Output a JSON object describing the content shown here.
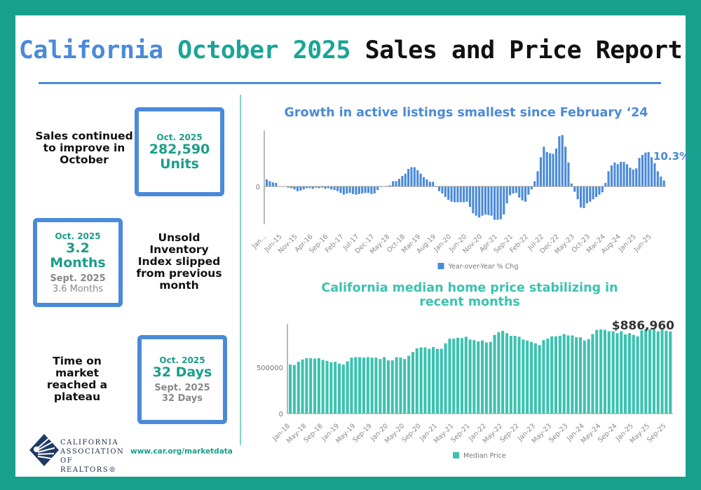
{
  "header": {
    "title_part1": "California",
    "title_part2": "October 2025",
    "title_part3": "Sales and Price Report"
  },
  "colors": {
    "frame": "#17a08e",
    "blue": "#4a8ad8",
    "teal": "#1a9e8a",
    "price_bar": "#3cc2b0"
  },
  "highlights": [
    {
      "description": "Sales continued to improve in October",
      "label": "Oct. 2025",
      "value": "282,590",
      "unit": "Units"
    },
    {
      "description": "Unsold Inventory Index slipped from previous month",
      "label": "Oct. 2025",
      "value": "3.2 Months",
      "prev_label": "Sept. 2025",
      "prev_value": "3.6 Months"
    },
    {
      "description": "Time on market reached a plateau",
      "label": "Oct. 2025",
      "value": "32 Days",
      "prev_label": "Sept. 2025",
      "prev_value": "32 Days"
    }
  ],
  "footer": {
    "logo_text": "CALIFORNIA ASSOCIATION OF REALTORS®",
    "url": "www.car.org/marketdata"
  },
  "chart_data": [
    {
      "type": "bar",
      "title": "Growth in active listings smallest since February ‘24",
      "series": [
        {
          "name": "Year-over-Year % Chg",
          "values": [
            12,
            9,
            7,
            6,
            0,
            0,
            0,
            -2,
            -3,
            -5,
            -8,
            -7,
            -5,
            -3,
            -3,
            -4,
            -2,
            -3,
            -2,
            -4,
            -3,
            -5,
            -6,
            -8,
            -11,
            -14,
            -12,
            -11,
            -13,
            -14,
            -13,
            -12,
            -11,
            -11,
            -13,
            -12,
            -6,
            -1,
            0,
            1,
            2,
            9,
            9,
            13,
            18,
            22,
            30,
            33,
            33,
            28,
            22,
            16,
            12,
            8,
            8,
            -1,
            -8,
            -12,
            -18,
            -23,
            -26,
            -27,
            -27,
            -27,
            -27,
            -26,
            -35,
            -46,
            -50,
            -53,
            -50,
            -48,
            -49,
            -50,
            -57,
            -57,
            -56,
            -48,
            -29,
            -15,
            -12,
            -11,
            -19,
            -24,
            -26,
            -14,
            -5,
            9,
            26,
            50,
            68,
            59,
            57,
            56,
            65,
            86,
            88,
            68,
            41,
            5,
            -9,
            -22,
            -36,
            -37,
            -29,
            -26,
            -22,
            -18,
            -14,
            -10,
            6,
            26,
            36,
            41,
            38,
            42,
            42,
            38,
            32,
            29,
            31,
            49,
            54,
            58,
            59,
            50,
            40,
            26,
            17,
            10.3
          ]
        }
      ],
      "tick_labels": [
        "Jan...",
        "Jun-15",
        "Nov-15",
        "Apr-16",
        "Sep-16",
        "Feb-17",
        "Jul-17",
        "Dec-17",
        "May-18",
        "Oct-18",
        "Mar-19",
        "Aug-19",
        "Jan-20",
        "Jun-20",
        "Nov-20",
        "Apr-21",
        "Sep-21",
        "Feb-22",
        "Jul-22",
        "Dec-22",
        "May-23",
        "Oct-23",
        "Mar-24",
        "Aug-24",
        "Jan-25",
        "Jun-25"
      ],
      "y_tick_labels": [
        "0"
      ],
      "ylim": [
        -60,
        90
      ],
      "annotation": "10.3%",
      "legend": "bottom"
    },
    {
      "type": "bar",
      "title": "California median home price stabilizing in recent months",
      "series": [
        {
          "name": "Median Price",
          "values": [
            530000,
            525000,
            560000,
            585000,
            600000,
            600000,
            595000,
            600000,
            580000,
            570000,
            555000,
            560000,
            540000,
            530000,
            565000,
            605000,
            610000,
            610000,
            605000,
            610000,
            605000,
            605000,
            590000,
            610000,
            575000,
            575000,
            610000,
            605000,
            590000,
            625000,
            665000,
            705000,
            715000,
            715000,
            700000,
            720000,
            700000,
            700000,
            760000,
            810000,
            810000,
            820000,
            815000,
            830000,
            800000,
            795000,
            780000,
            790000,
            770000,
            775000,
            850000,
            880000,
            895000,
            870000,
            840000,
            840000,
            830000,
            800000,
            790000,
            775000,
            760000,
            740000,
            795000,
            810000,
            835000,
            835000,
            840000,
            860000,
            845000,
            845000,
            825000,
            825000,
            790000,
            805000,
            860000,
            905000,
            910000,
            905000,
            890000,
            890000,
            870000,
            890000,
            855000,
            870000,
            850000,
            835000,
            900000,
            915000,
            910000,
            910000,
            890000,
            910000,
            895000,
            886960
          ]
        }
      ],
      "tick_labels": [
        "Jan-18",
        "May-18",
        "Sep-18",
        "Jan-19",
        "May-19",
        "Sep-19",
        "Jan-20",
        "May-20",
        "Sep-20",
        "Jan-21",
        "May-21",
        "Sep-21",
        "Jan-22",
        "May-22",
        "Sep-22",
        "Jan-23",
        "May-23",
        "Sep-23",
        "Jan-24",
        "May-24",
        "Sep-24",
        "Jan-25",
        "May-25",
        "Sep-25"
      ],
      "y_tick_labels": [
        "0",
        "500000"
      ],
      "ylim": [
        0,
        1000000
      ],
      "annotation": "$886,960",
      "legend": "bottom"
    }
  ]
}
